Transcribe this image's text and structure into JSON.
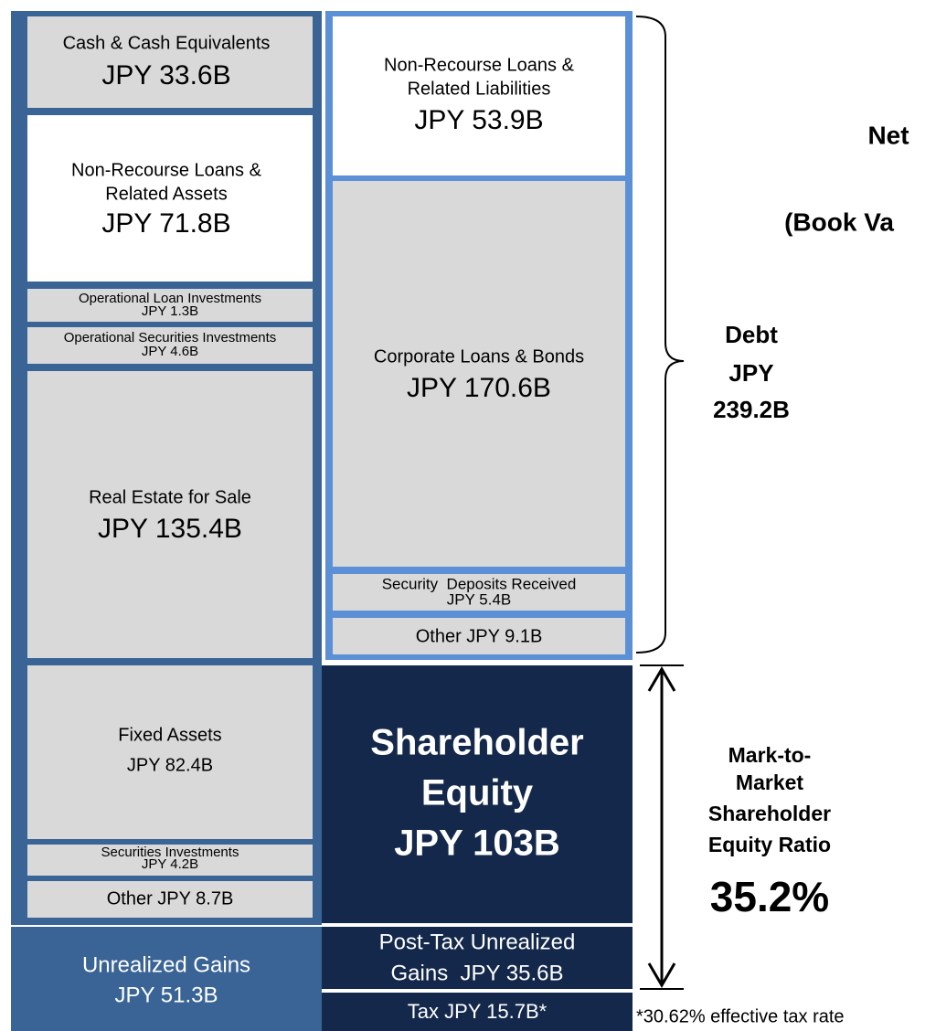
{
  "assets": {
    "cash": {
      "label": "Cash & Cash Equivalents",
      "amount": "JPY 33.6B"
    },
    "non_recourse": {
      "label": [
        "Non-Recourse Loans &",
        "Related Assets"
      ],
      "amount": "JPY 71.8B"
    },
    "operational_loans": {
      "label": "Operational Loan Investments",
      "amount": "JPY 1.3B"
    },
    "operational_securities": {
      "label": "Operational Securities Investments",
      "amount": "JPY 4.6B"
    },
    "real_estate": {
      "label": "Real Estate for Sale",
      "amount": "JPY 135.4B"
    },
    "fixed_assets": {
      "label": "Fixed Assets",
      "amount": "JPY 82.4B"
    },
    "securities": {
      "label": "Securities Investments",
      "amount": "JPY 4.2B"
    },
    "other": "Other JPY 8.7B",
    "unrealized_gains": [
      "Unrealized Gains",
      "JPY 51.3B"
    ]
  },
  "liabilities": {
    "non_recourse": {
      "label": [
        "Non-Recourse Loans &",
        "Related Liabilities"
      ],
      "amount": "JPY 53.9B"
    },
    "corporate": {
      "label": "Corporate Loans & Bonds",
      "amount": "JPY 170.6B"
    },
    "deposits": {
      "label": "Security  Deposits Received",
      "amount": "JPY 5.4B"
    },
    "other": "Other JPY 9.1B"
  },
  "equity": {
    "label": [
      "Shareholder",
      "Equity",
      "JPY 103B"
    ],
    "post_tax": [
      "Post-Tax Unrealized",
      "Gains  JPY 35.6B"
    ],
    "tax": "Tax JPY 15.7B*"
  },
  "annotations": {
    "net": [
      "Net",
      "(Book Va"
    ],
    "debt": [
      "Debt",
      "JPY",
      "239.2B"
    ],
    "ratio_label": [
      "Mark-to-",
      "Market",
      "Shareholder",
      "Equity Ratio"
    ],
    "ratio": "35.2%",
    "footnote": "*30.62% effective tax rate"
  }
}
